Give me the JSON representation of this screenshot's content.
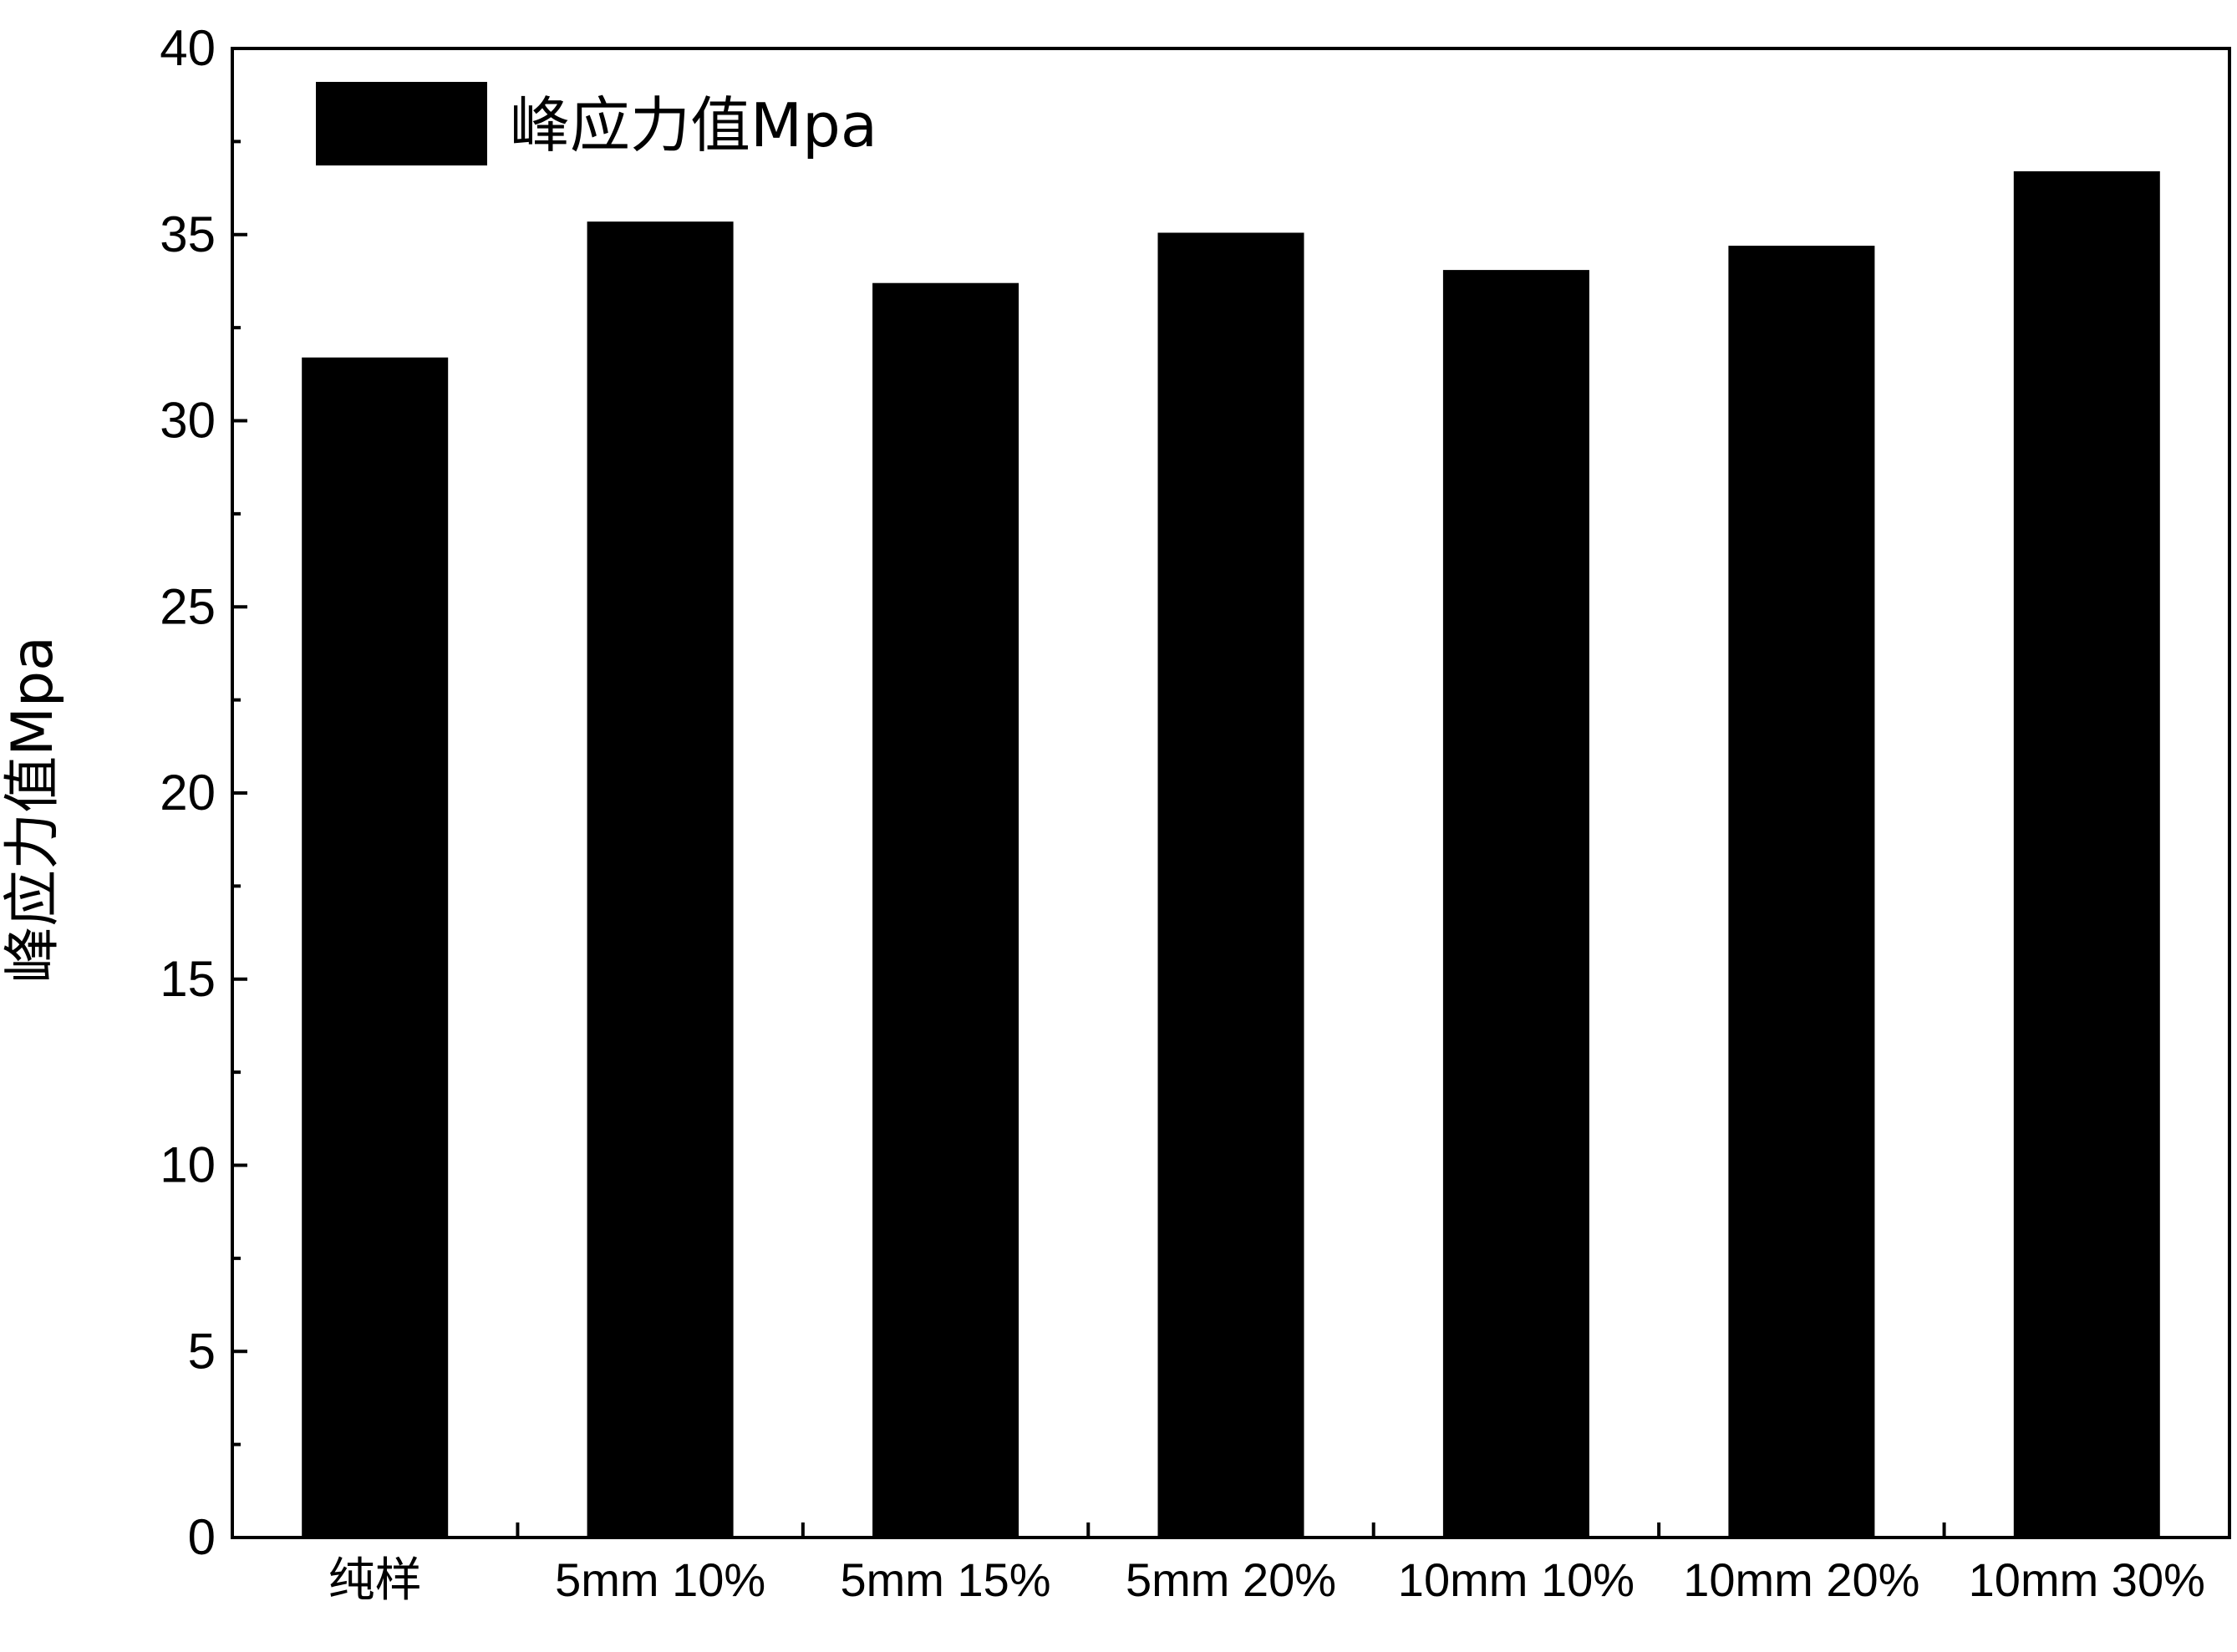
{
  "chart_data": {
    "type": "bar",
    "ylabel": "峰应力值Mpa",
    "xlabel": "",
    "ylim": [
      0,
      40
    ],
    "yticks": [
      0,
      5,
      10,
      15,
      20,
      25,
      30,
      35,
      40
    ],
    "categories": [
      "纯样",
      "5mm 10%",
      "5mm 15%",
      "5mm 20%",
      "10mm 10%",
      "10mm 20%",
      "10mm 30%"
    ],
    "series": [
      {
        "name": "峰应力值Mpa",
        "color": "#000000",
        "values": [
          31.7,
          35.35,
          33.7,
          35.05,
          34.05,
          34.7,
          36.7
        ]
      }
    ],
    "legend": {
      "position": "top-left"
    },
    "grid": false
  }
}
